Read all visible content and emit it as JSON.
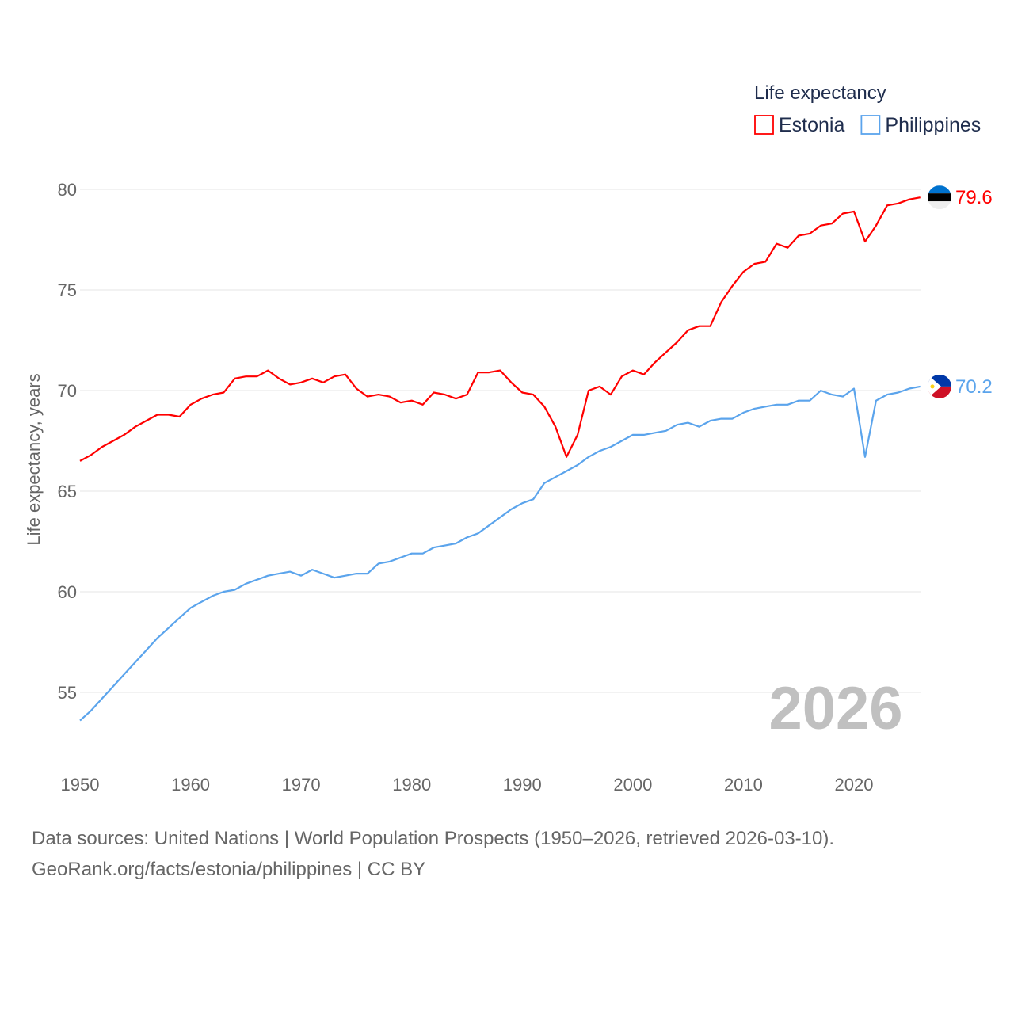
{
  "chart_data": {
    "type": "line",
    "title": "",
    "xlabel": "",
    "ylabel": "Life expectancy, years",
    "xlim": [
      1950,
      2026
    ],
    "ylim": [
      52.5,
      81
    ],
    "yticks": [
      55,
      60,
      65,
      70,
      75,
      80
    ],
    "xticks": [
      1950,
      1960,
      1970,
      1980,
      1990,
      2000,
      2010,
      2020
    ],
    "grid": true,
    "legend": {
      "title": "Life expectancy",
      "placement": "top-right"
    },
    "watermark_year": "2026",
    "x_start": 1950,
    "series": [
      {
        "name": "Estonia",
        "color": "#ff0000",
        "end_label": "79.6",
        "flag": "estonia-flag",
        "values": [
          66.5,
          66.8,
          67.2,
          67.5,
          67.8,
          68.2,
          68.5,
          68.8,
          68.8,
          68.7,
          69.3,
          69.6,
          69.8,
          69.9,
          70.6,
          70.7,
          70.7,
          71.0,
          70.6,
          70.3,
          70.4,
          70.6,
          70.4,
          70.7,
          70.8,
          70.1,
          69.7,
          69.8,
          69.7,
          69.4,
          69.5,
          69.3,
          69.9,
          69.8,
          69.6,
          69.8,
          70.9,
          70.9,
          71.0,
          70.4,
          69.9,
          69.8,
          69.2,
          68.2,
          66.7,
          67.8,
          70.0,
          70.2,
          69.8,
          70.7,
          71.0,
          70.8,
          71.4,
          71.9,
          72.4,
          73.0,
          73.2,
          73.2,
          74.4,
          75.2,
          75.9,
          76.3,
          76.4,
          77.3,
          77.1,
          77.7,
          77.8,
          78.2,
          78.3,
          78.8,
          78.9,
          77.4,
          78.2,
          79.2,
          79.3,
          79.5,
          79.6
        ]
      },
      {
        "name": "Philippines",
        "color": "#5ba4ec",
        "end_label": "70.2",
        "flag": "philippines-flag",
        "values": [
          53.6,
          54.1,
          54.7,
          55.3,
          55.9,
          56.5,
          57.1,
          57.7,
          58.2,
          58.7,
          59.2,
          59.5,
          59.8,
          60.0,
          60.1,
          60.4,
          60.6,
          60.8,
          60.9,
          61.0,
          60.8,
          61.1,
          60.9,
          60.7,
          60.8,
          60.9,
          60.9,
          61.4,
          61.5,
          61.7,
          61.9,
          61.9,
          62.2,
          62.3,
          62.4,
          62.7,
          62.9,
          63.3,
          63.7,
          64.1,
          64.4,
          64.6,
          65.4,
          65.7,
          66.0,
          66.3,
          66.7,
          67.0,
          67.2,
          67.5,
          67.8,
          67.8,
          67.9,
          68.0,
          68.3,
          68.4,
          68.2,
          68.5,
          68.6,
          68.6,
          68.9,
          69.1,
          69.2,
          69.3,
          69.3,
          69.5,
          69.5,
          70.0,
          69.8,
          69.7,
          70.1,
          66.7,
          69.5,
          69.8,
          69.9,
          70.1,
          70.2
        ]
      }
    ]
  },
  "footer": {
    "line1": "Data sources: United Nations | World Population Prospects (1950–2026, retrieved 2026-03-10).",
    "line2": "GeoRank.org/facts/estonia/philippines | CC BY"
  }
}
